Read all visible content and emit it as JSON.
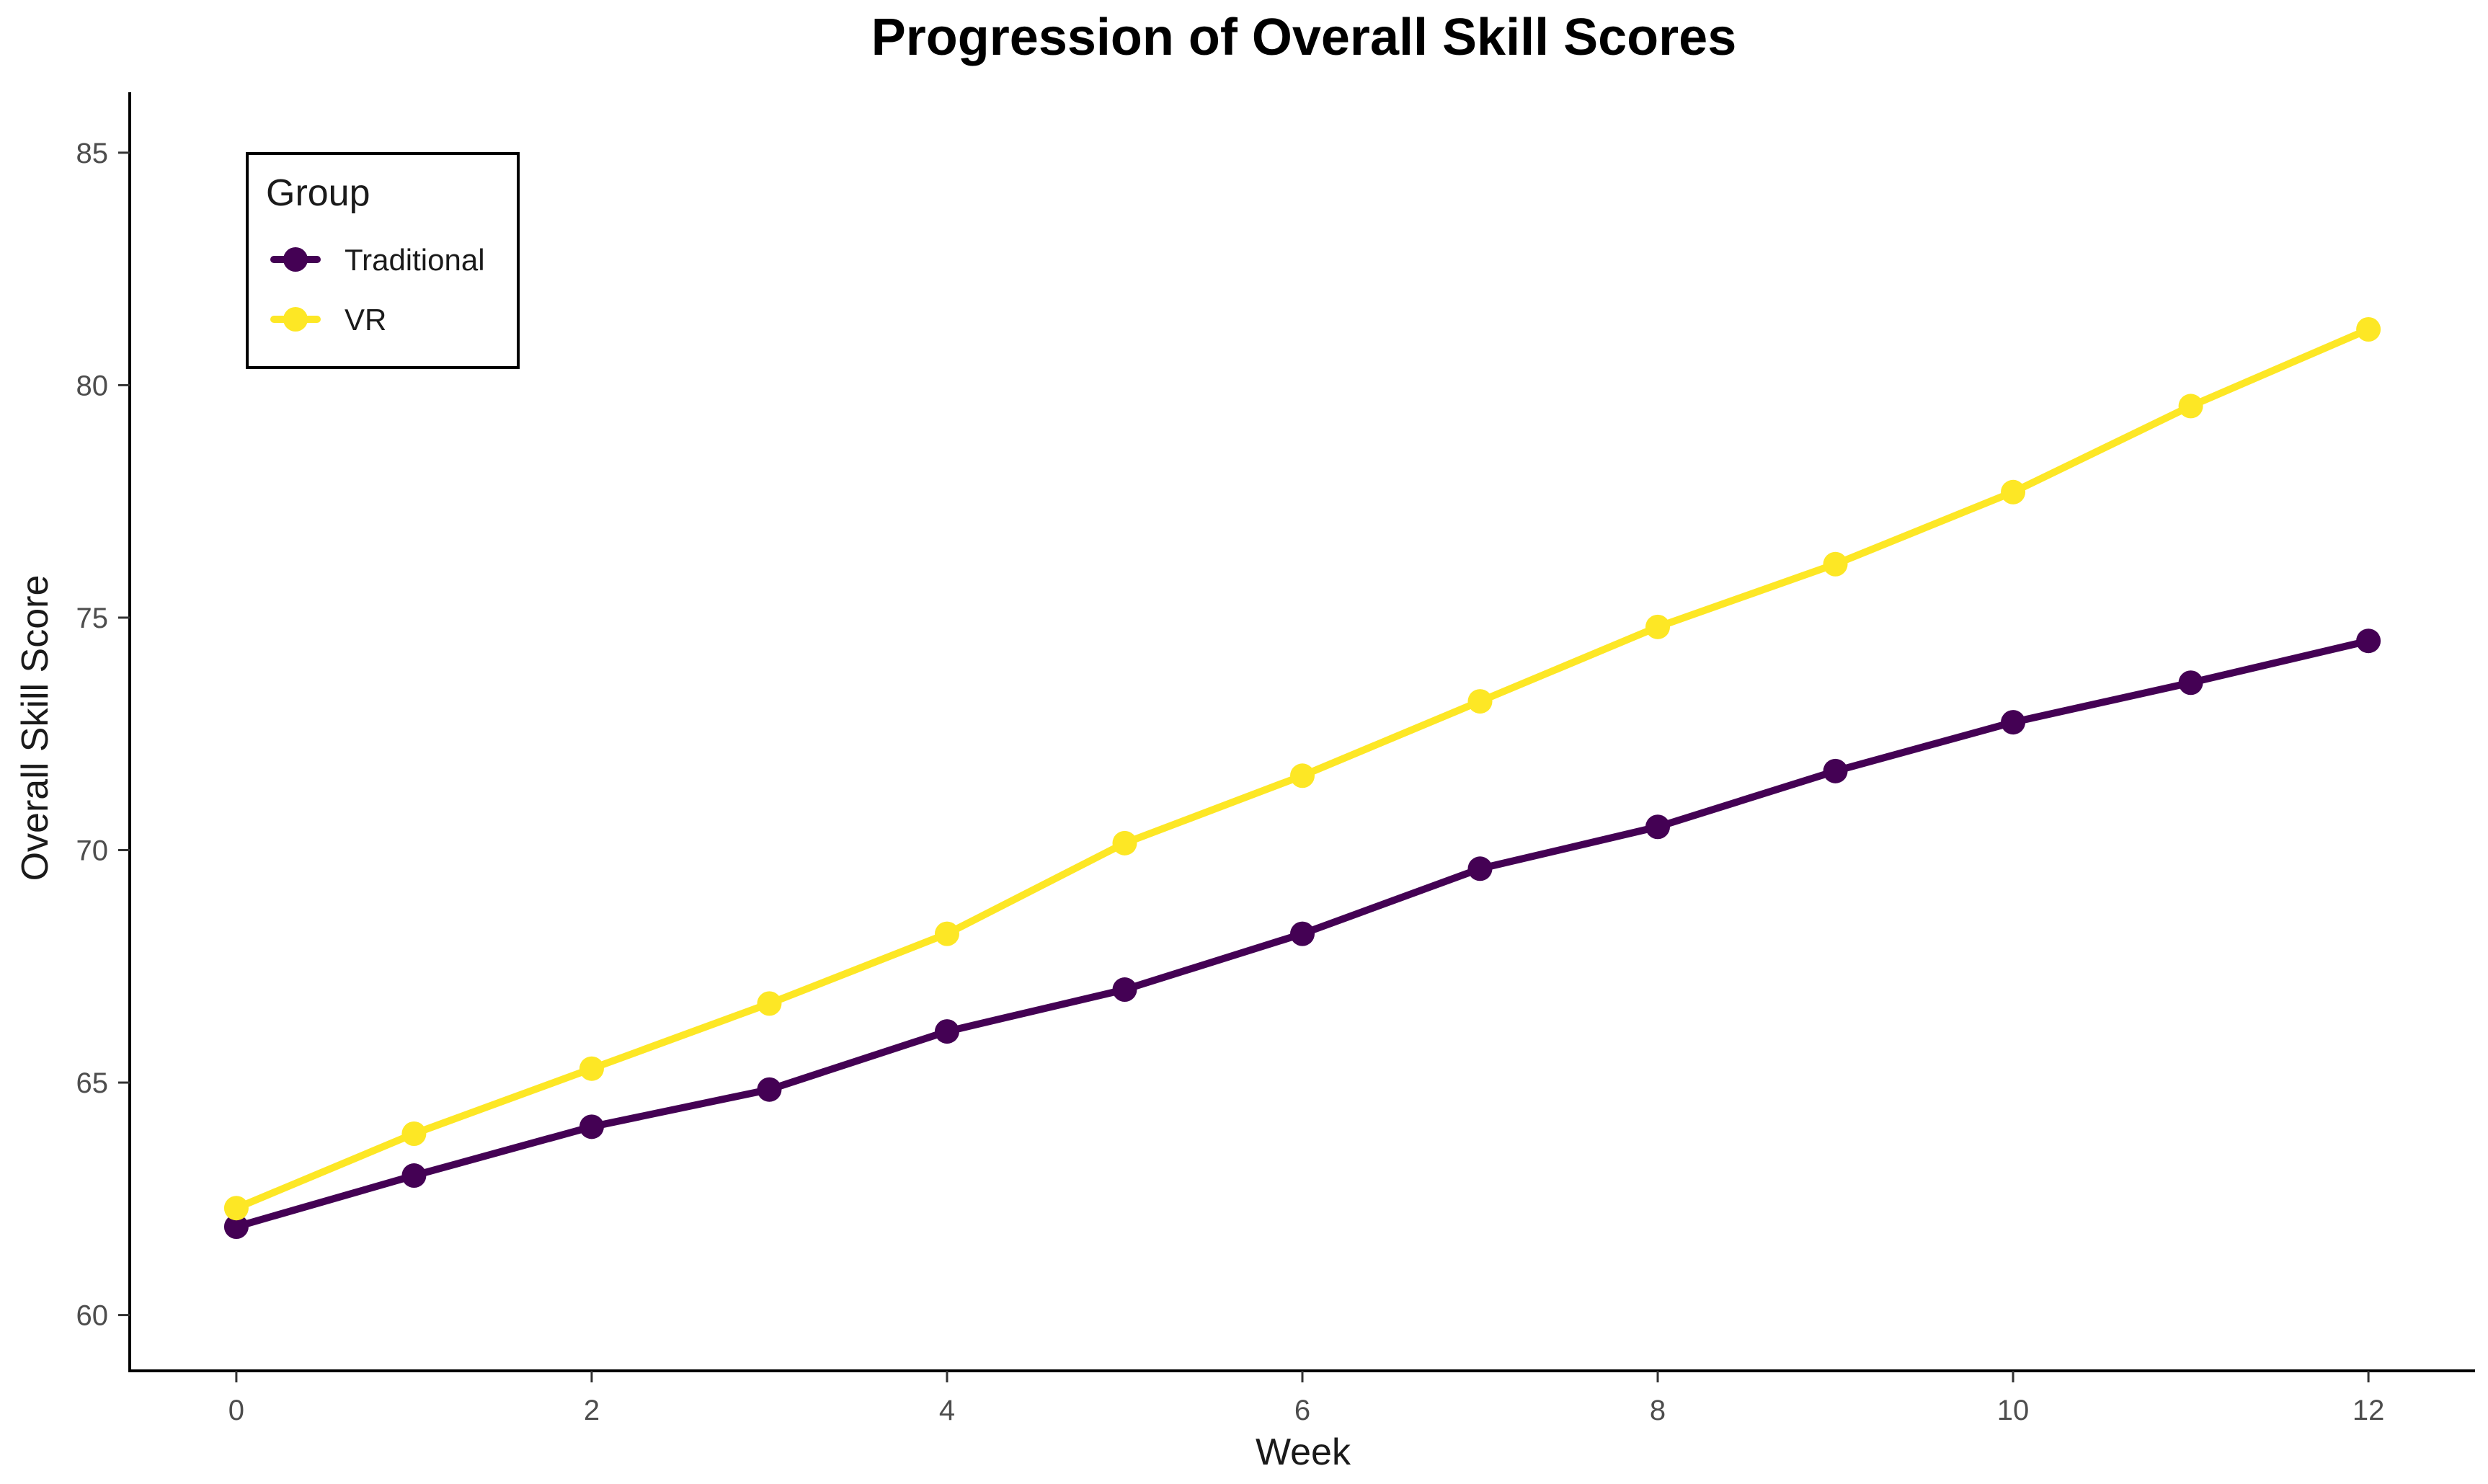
{
  "chart_data": {
    "type": "line",
    "title": "Progression of Overall Skill Scores",
    "xlabel": "Week",
    "ylabel": "Overall Skill Score",
    "xlim": [
      -0.6,
      12.6
    ],
    "ylim": [
      58.8,
      86.3
    ],
    "xticks": [
      0,
      2,
      4,
      6,
      8,
      10,
      12
    ],
    "yticks": [
      60,
      65,
      70,
      75,
      80,
      85
    ],
    "grid": false,
    "legend": {
      "title": "Group",
      "position": "top-left"
    },
    "x": [
      0,
      1,
      2,
      3,
      4,
      5,
      6,
      7,
      8,
      9,
      10,
      11,
      12
    ],
    "series": [
      {
        "name": "Traditional",
        "color": "#440154",
        "values": [
          61.9,
          63.0,
          64.05,
          64.85,
          66.1,
          67.0,
          68.2,
          69.6,
          70.5,
          71.7,
          72.75,
          73.6,
          74.5
        ]
      },
      {
        "name": "VR",
        "color": "#FDE725",
        "values": [
          62.3,
          63.9,
          65.3,
          66.7,
          68.2,
          70.15,
          71.6,
          73.2,
          74.8,
          76.15,
          77.7,
          79.55,
          81.2
        ]
      }
    ]
  }
}
